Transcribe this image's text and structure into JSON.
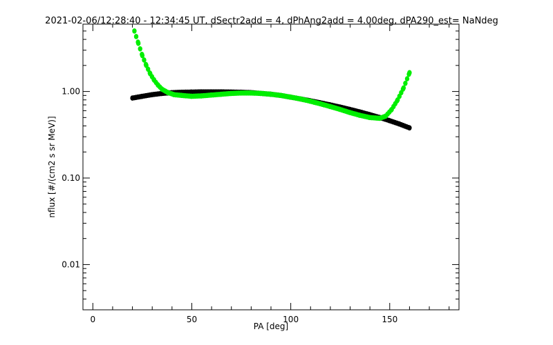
{
  "chart_data": {
    "type": "scatter",
    "title": "2021-02-06/12:28:40 - 12:34:45 UT, dSectr2add = 4, dPhAng2add = 4.00deg, dPA290_est=   NaNdeg",
    "xlabel": "PA [deg]",
    "ylabel": "nflux [#/(cm2 s sr MeV)]",
    "xlim": [
      -5,
      185
    ],
    "ylim": [
      0.003,
      6
    ],
    "yscale": "log",
    "x_ticks": [
      0,
      50,
      100,
      150
    ],
    "x_tick_labels": [
      "0",
      "50",
      "100",
      "150"
    ],
    "y_ticks": [
      0.01,
      0.1,
      1.0
    ],
    "y_tick_labels": [
      "0.01",
      "0.10",
      "1.00"
    ],
    "grid": false,
    "legend": "none",
    "series": [
      {
        "color": "#000000",
        "x": [
          20,
          25,
          30,
          35,
          40,
          45,
          50,
          55,
          60,
          65,
          70,
          75,
          80,
          85,
          90,
          95,
          100,
          105,
          110,
          115,
          120,
          125,
          130,
          135,
          140,
          145,
          150,
          155,
          160
        ],
        "y": [
          0.84,
          0.88,
          0.92,
          0.95,
          0.97,
          0.98,
          0.985,
          0.99,
          0.99,
          0.99,
          0.985,
          0.98,
          0.97,
          0.95,
          0.93,
          0.9,
          0.86,
          0.82,
          0.78,
          0.74,
          0.7,
          0.66,
          0.62,
          0.58,
          0.54,
          0.5,
          0.46,
          0.42,
          0.38
        ]
      },
      {
        "color": "#00ee00",
        "x": [
          21,
          23,
          25,
          27,
          29,
          31,
          33,
          35,
          38,
          41,
          45,
          50,
          55,
          60,
          65,
          70,
          75,
          80,
          85,
          90,
          95,
          100,
          105,
          110,
          115,
          120,
          125,
          130,
          135,
          140,
          145,
          148,
          151,
          154,
          157,
          160
        ],
        "y": [
          5.0,
          3.6,
          2.6,
          2.0,
          1.6,
          1.35,
          1.18,
          1.06,
          0.97,
          0.92,
          0.9,
          0.88,
          0.89,
          0.91,
          0.93,
          0.95,
          0.96,
          0.96,
          0.95,
          0.93,
          0.9,
          0.86,
          0.82,
          0.77,
          0.72,
          0.67,
          0.62,
          0.57,
          0.53,
          0.5,
          0.49,
          0.52,
          0.62,
          0.8,
          1.1,
          1.65
        ]
      }
    ]
  }
}
